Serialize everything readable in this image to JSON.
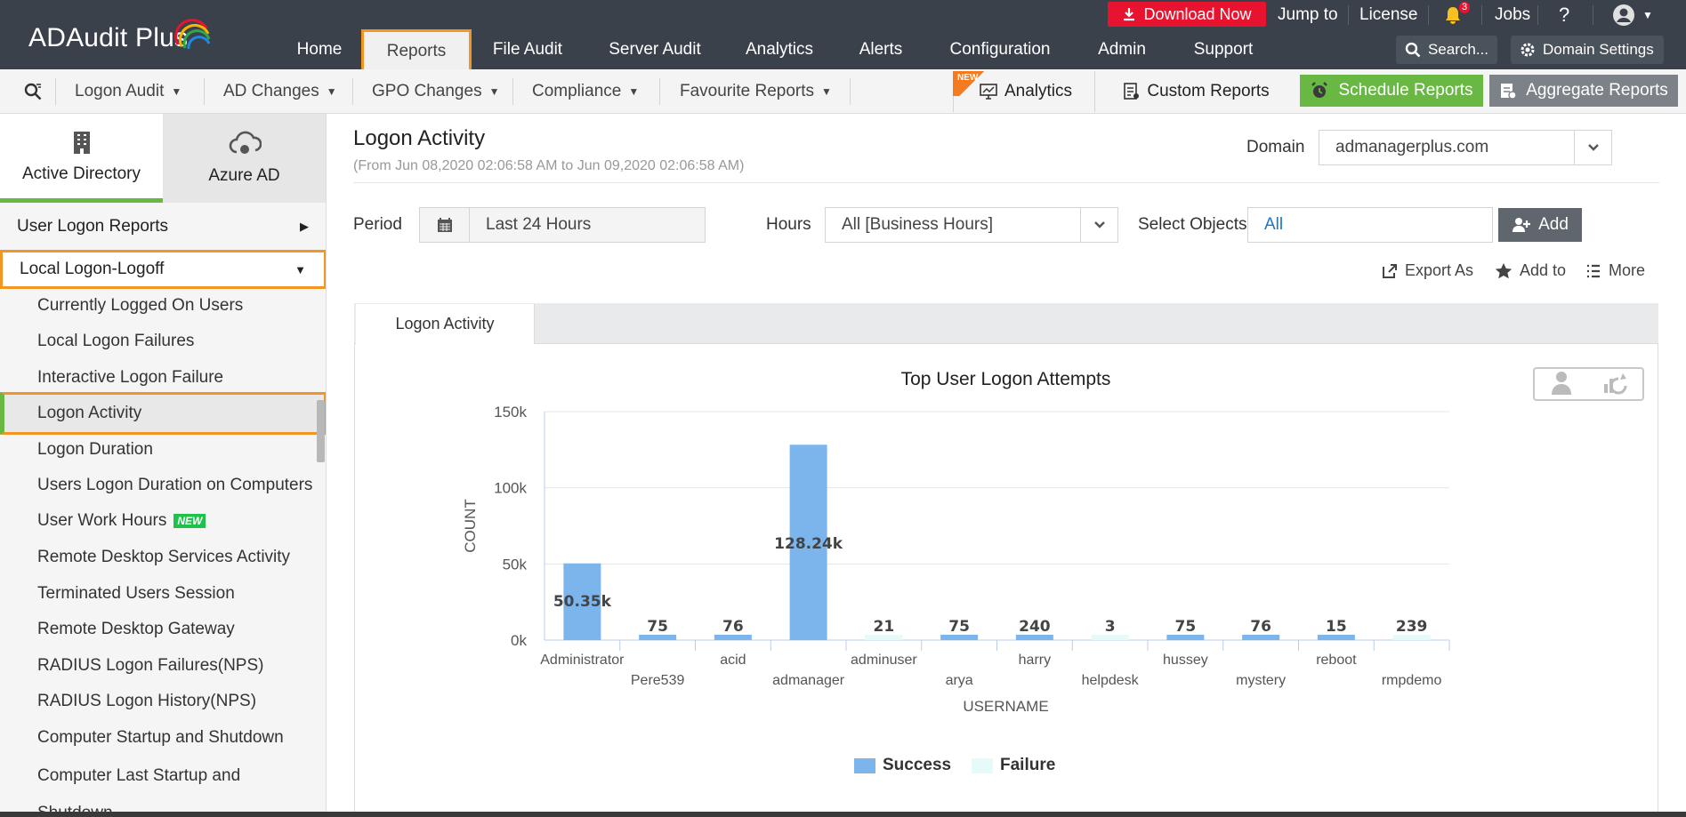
{
  "app": {
    "logo": "ADAudit Plus"
  },
  "top_nav": [
    {
      "label": "Home",
      "active": false
    },
    {
      "label": "Reports",
      "active": true
    },
    {
      "label": "File Audit",
      "active": false
    },
    {
      "label": "Server Audit",
      "active": false
    },
    {
      "label": "Analytics",
      "active": false
    },
    {
      "label": "Alerts",
      "active": false
    },
    {
      "label": "Configuration",
      "active": false
    },
    {
      "label": "Admin",
      "active": false
    },
    {
      "label": "Support",
      "active": false
    }
  ],
  "top_util": {
    "download": "Download Now",
    "jump": "Jump to",
    "license": "License",
    "notif_count": "3",
    "jobs": "Jobs",
    "help": "?",
    "search": "Search...",
    "domain_settings": "Domain Settings"
  },
  "sub_nav": {
    "items": [
      "Logon Audit",
      "AD Changes",
      "GPO Changes",
      "Compliance",
      "Favourite Reports"
    ],
    "new_flag": "NEW",
    "analytics": "Analytics",
    "custom_reports": "Custom Reports",
    "schedule": "Schedule Reports",
    "aggregate": "Aggregate Reports"
  },
  "sidebar": {
    "tabs": [
      "Active Directory",
      "Azure AD"
    ],
    "section_collapsed": "User Logon Reports",
    "section_open": "Local Logon-Logoff",
    "items": [
      "Currently Logged On Users",
      "Local Logon Failures",
      "Interactive Logon Failure",
      "Logon Activity",
      "Logon Duration",
      "Users Logon Duration on Computers",
      "User Work Hours",
      "Remote Desktop Services Activity",
      "Terminated Users Session",
      "Remote Desktop Gateway",
      "RADIUS Logon Failures(NPS)",
      "RADIUS Logon History(NPS)",
      "Computer Startup and Shutdown",
      "Computer Last Startup and Shutdown"
    ],
    "new_tag": "NEW",
    "active_item": "Logon Activity"
  },
  "main": {
    "title": "Logon Activity",
    "subtitle": "(From Jun 08,2020 02:06:58 AM to Jun 09,2020 02:06:58 AM)",
    "domain_label": "Domain",
    "domain_value": "admanagerplus.com",
    "period_label": "Period",
    "period_value": "Last 24 Hours",
    "hours_label": "Hours",
    "hours_value": "All [Business Hours]",
    "objects_label": "Select Objects",
    "objects_value": "All",
    "add": "Add",
    "export": "Export As",
    "add_to": "Add to",
    "more": "More",
    "tab": "Logon Activity"
  },
  "colors": {
    "success": "#7cb5ec",
    "failure": "#e6fafa",
    "accent_orange": "#f39520",
    "accent_green": "#69b843"
  },
  "chart_data": {
    "type": "bar",
    "title": "Top User Logon Attempts",
    "xlabel": "USERNAME",
    "ylabel": "COUNT",
    "ylim": [
      0,
      150000
    ],
    "yticks": [
      "0k",
      "50k",
      "100k",
      "150k"
    ],
    "categories": [
      "Administrator",
      "Pere539",
      "acid",
      "admanager",
      "adminuser",
      "arya",
      "harry",
      "helpdesk",
      "hussey",
      "mystery",
      "reboot",
      "rmpdemo"
    ],
    "series": [
      {
        "name": "Success",
        "values": [
          50350,
          75,
          76,
          128240,
          0,
          75,
          240,
          0,
          75,
          76,
          15,
          0
        ]
      },
      {
        "name": "Failure",
        "values": [
          0,
          0,
          0,
          0,
          21,
          0,
          0,
          3,
          0,
          0,
          0,
          239
        ]
      }
    ],
    "labels": [
      "50.35k",
      "75",
      "76",
      "128.24k",
      "21",
      "75",
      "240",
      "3",
      "75",
      "76",
      "15",
      "239"
    ],
    "legend_position": "bottom"
  }
}
